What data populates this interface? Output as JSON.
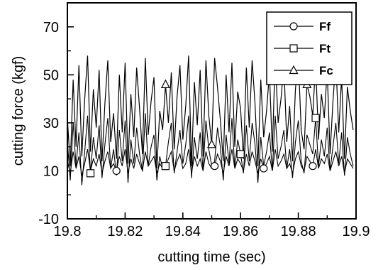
{
  "chart_data": {
    "type": "line",
    "title": "",
    "xlabel": "cutting time (sec)",
    "ylabel": "cutting force  (kgf)",
    "xlim": [
      19.8,
      19.9
    ],
    "ylim": [
      -10,
      80
    ],
    "x_ticks": [
      "19.8",
      "19.82",
      "19.84",
      "19.86",
      "19.88",
      "19.9"
    ],
    "y_ticks": [
      "-10",
      "10",
      "30",
      "50",
      "70"
    ],
    "grid": false,
    "legend_position": "top-right",
    "series": [
      {
        "name": "Ff",
        "marker": "circle",
        "marker_x": [
          19.817,
          19.834,
          19.851,
          19.868,
          19.885
        ],
        "x": [
          19.8,
          19.801,
          19.802,
          19.803,
          19.804,
          19.805,
          19.806,
          19.807,
          19.808,
          19.809,
          19.81,
          19.811,
          19.812,
          19.813,
          19.814,
          19.815,
          19.816,
          19.817,
          19.818,
          19.819,
          19.82,
          19.821,
          19.822,
          19.823,
          19.824,
          19.825,
          19.826,
          19.827,
          19.828,
          19.829,
          19.83,
          19.831,
          19.832,
          19.833,
          19.834,
          19.835,
          19.836,
          19.837,
          19.838,
          19.839,
          19.84,
          19.841,
          19.842,
          19.843,
          19.844,
          19.845,
          19.846,
          19.847,
          19.848,
          19.849,
          19.85,
          19.851,
          19.852,
          19.853,
          19.854,
          19.855,
          19.856,
          19.857,
          19.858,
          19.859,
          19.86,
          19.861,
          19.862,
          19.863,
          19.864,
          19.865,
          19.866,
          19.867,
          19.868,
          19.869,
          19.87,
          19.871,
          19.872,
          19.873,
          19.874,
          19.875,
          19.876,
          19.877,
          19.878,
          19.879,
          19.88,
          19.881,
          19.882,
          19.883,
          19.884,
          19.885,
          19.886,
          19.887,
          19.888,
          19.889,
          19.89,
          19.891,
          19.892,
          19.893,
          19.894,
          19.895,
          19.896,
          19.897,
          19.898,
          19.899
        ],
        "values": [
          14,
          9,
          18,
          11,
          16,
          8,
          13,
          19,
          10,
          15,
          12,
          17,
          9,
          14,
          18,
          11,
          13,
          10,
          16,
          12,
          19,
          9,
          15,
          11,
          17,
          13,
          10,
          18,
          12,
          14,
          16,
          9,
          13,
          11,
          12,
          15,
          18,
          10,
          14,
          17,
          11,
          13,
          19,
          9,
          16,
          12,
          15,
          10,
          18,
          13,
          11,
          12,
          17,
          14,
          9,
          16,
          12,
          19,
          11,
          15,
          13,
          10,
          17,
          12,
          18,
          14,
          9,
          15,
          11,
          13,
          16,
          10,
          19,
          12,
          14,
          17,
          11,
          13,
          9,
          15,
          18,
          12,
          10,
          16,
          14,
          12,
          19,
          11,
          15,
          13,
          17,
          10,
          14,
          18,
          12,
          16,
          9,
          15,
          13,
          11
        ]
      },
      {
        "name": "Ft",
        "marker": "square",
        "marker_x": [
          19.808,
          19.834,
          19.86,
          19.886
        ],
        "x": [
          19.8,
          19.801,
          19.802,
          19.803,
          19.804,
          19.805,
          19.806,
          19.807,
          19.808,
          19.809,
          19.81,
          19.811,
          19.812,
          19.813,
          19.814,
          19.815,
          19.816,
          19.817,
          19.818,
          19.819,
          19.82,
          19.821,
          19.822,
          19.823,
          19.824,
          19.825,
          19.826,
          19.827,
          19.828,
          19.829,
          19.83,
          19.831,
          19.832,
          19.833,
          19.834,
          19.835,
          19.836,
          19.837,
          19.838,
          19.839,
          19.84,
          19.841,
          19.842,
          19.843,
          19.844,
          19.845,
          19.846,
          19.847,
          19.848,
          19.849,
          19.85,
          19.851,
          19.852,
          19.853,
          19.854,
          19.855,
          19.856,
          19.857,
          19.858,
          19.859,
          19.86,
          19.861,
          19.862,
          19.863,
          19.864,
          19.865,
          19.866,
          19.867,
          19.868,
          19.869,
          19.87,
          19.871,
          19.872,
          19.873,
          19.874,
          19.875,
          19.876,
          19.877,
          19.878,
          19.879,
          19.88,
          19.881,
          19.882,
          19.883,
          19.884,
          19.885,
          19.886,
          19.887,
          19.888,
          19.889,
          19.89,
          19.891,
          19.892,
          19.893,
          19.894,
          19.895,
          19.896,
          19.897,
          19.898,
          19.899
        ],
        "values": [
          22,
          6,
          30,
          12,
          26,
          4,
          18,
          33,
          9,
          24,
          15,
          29,
          7,
          21,
          32,
          11,
          19,
          8,
          27,
          14,
          31,
          5,
          23,
          13,
          28,
          17,
          10,
          34,
          12,
          20,
          25,
          6,
          16,
          11,
          12,
          22,
          30,
          9,
          18,
          27,
          13,
          21,
          33,
          7,
          24,
          15,
          26,
          10,
          31,
          19,
          12,
          14,
          28,
          20,
          6,
          25,
          13,
          32,
          11,
          23,
          17,
          9,
          29,
          14,
          30,
          21,
          5,
          24,
          12,
          18,
          26,
          10,
          33,
          15,
          20,
          27,
          11,
          19,
          7,
          22,
          31,
          14,
          9,
          25,
          21,
          17,
          32,
          12,
          23,
          16,
          28,
          10,
          20,
          30,
          13,
          26,
          8,
          24,
          17,
          12
        ]
      },
      {
        "name": "Fc",
        "marker": "triangle",
        "marker_x": [
          19.834,
          19.85,
          19.883
        ],
        "x": [
          19.8,
          19.801,
          19.802,
          19.803,
          19.804,
          19.805,
          19.806,
          19.807,
          19.808,
          19.809,
          19.81,
          19.811,
          19.812,
          19.813,
          19.814,
          19.815,
          19.816,
          19.817,
          19.818,
          19.819,
          19.82,
          19.821,
          19.822,
          19.823,
          19.824,
          19.825,
          19.826,
          19.827,
          19.828,
          19.829,
          19.83,
          19.831,
          19.832,
          19.833,
          19.834,
          19.835,
          19.836,
          19.837,
          19.838,
          19.839,
          19.84,
          19.841,
          19.842,
          19.843,
          19.844,
          19.845,
          19.846,
          19.847,
          19.848,
          19.849,
          19.85,
          19.851,
          19.852,
          19.853,
          19.854,
          19.855,
          19.856,
          19.857,
          19.858,
          19.859,
          19.86,
          19.861,
          19.862,
          19.863,
          19.864,
          19.865,
          19.866,
          19.867,
          19.868,
          19.869,
          19.87,
          19.871,
          19.872,
          19.873,
          19.874,
          19.875,
          19.876,
          19.877,
          19.878,
          19.879,
          19.88,
          19.881,
          19.882,
          19.883,
          19.884,
          19.885,
          19.886,
          19.887,
          19.888,
          19.889,
          19.89,
          19.891,
          19.892,
          19.893,
          19.894,
          19.895,
          19.896,
          19.897,
          19.898,
          19.899
        ],
        "values": [
          32,
          12,
          48,
          20,
          54,
          16,
          40,
          58,
          18,
          44,
          28,
          52,
          14,
          38,
          56,
          22,
          34,
          15,
          50,
          26,
          55,
          13,
          42,
          24,
          53,
          36,
          17,
          57,
          25,
          39,
          49,
          11,
          35,
          27,
          46,
          30,
          51,
          19,
          41,
          54,
          23,
          37,
          58,
          12,
          47,
          29,
          52,
          16,
          56,
          33,
          21,
          57,
          45,
          31,
          14,
          50,
          26,
          55,
          20,
          43,
          36,
          15,
          53,
          28,
          56,
          38,
          12,
          48,
          24,
          35,
          51,
          18,
          58,
          30,
          40,
          54,
          22,
          37,
          14,
          44,
          57,
          27,
          19,
          46,
          41,
          33,
          55,
          23,
          42,
          32,
          52,
          17,
          39,
          56,
          26,
          49,
          15,
          45,
          35,
          27
        ]
      }
    ]
  }
}
